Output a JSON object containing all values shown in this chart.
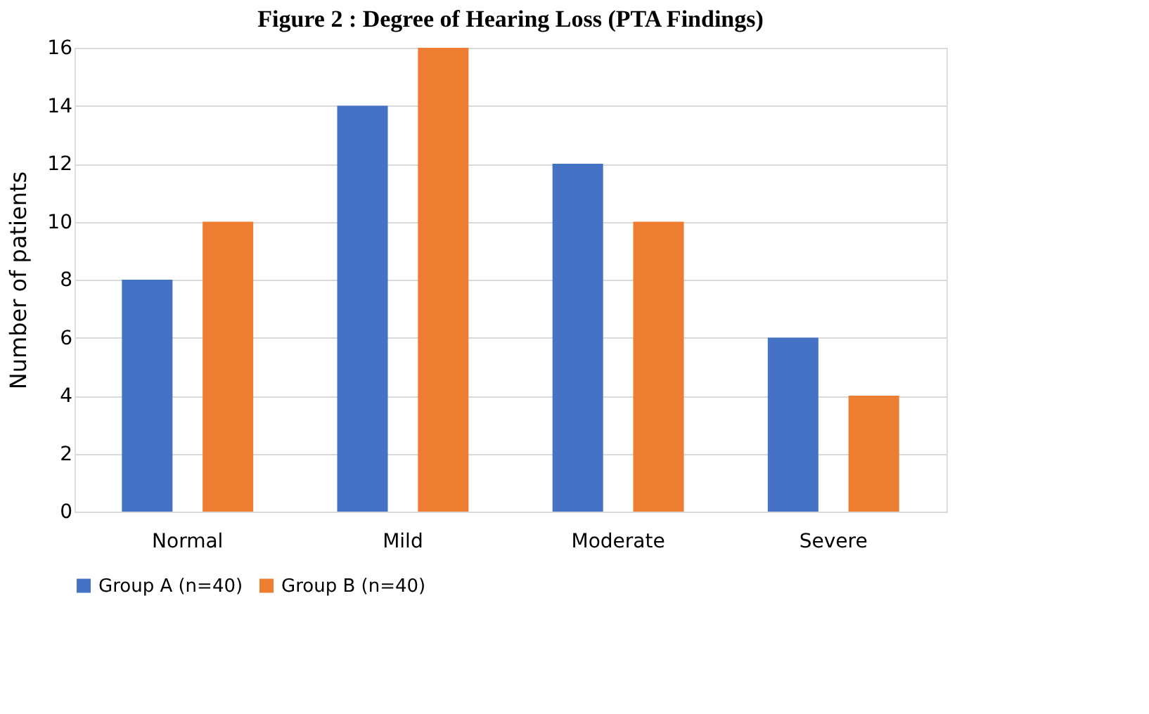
{
  "chart_data": {
    "type": "bar",
    "title": "Figure 2 : Degree of Hearing Loss (PTA Findings)",
    "ylabel": "Number of patients",
    "categories": [
      "Normal",
      "Mild",
      "Moderate",
      "Severe"
    ],
    "series": [
      {
        "name": "Group A (n=40)",
        "color": "#4472c4",
        "values": [
          8,
          14,
          12,
          6
        ]
      },
      {
        "name": "Group B (n=40)",
        "color": "#ed7d31",
        "values": [
          10,
          16,
          10,
          4
        ]
      }
    ],
    "ylim": [
      0,
      16
    ],
    "yticks": [
      0,
      2,
      4,
      6,
      8,
      10,
      12,
      14,
      16
    ],
    "grid": "y",
    "legend": "bottom"
  }
}
